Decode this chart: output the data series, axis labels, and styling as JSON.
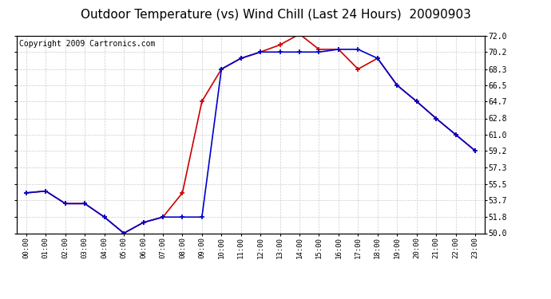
{
  "title": "Outdoor Temperature (vs) Wind Chill (Last 24 Hours)  20090903",
  "copyright": "Copyright 2009 Cartronics.com",
  "x_labels": [
    "00:00",
    "01:00",
    "02:00",
    "03:00",
    "04:00",
    "05:00",
    "06:00",
    "07:00",
    "08:00",
    "09:00",
    "10:00",
    "11:00",
    "12:00",
    "13:00",
    "14:00",
    "15:00",
    "16:00",
    "17:00",
    "18:00",
    "19:00",
    "20:00",
    "21:00",
    "22:00",
    "23:00"
  ],
  "temp_data": [
    54.5,
    54.7,
    53.3,
    53.3,
    51.8,
    50.0,
    51.2,
    51.8,
    54.5,
    64.7,
    68.3,
    69.5,
    70.2,
    71.0,
    72.2,
    70.5,
    70.5,
    68.3,
    69.5,
    66.5,
    64.7,
    62.8,
    61.0,
    59.2
  ],
  "windchill_data": [
    54.5,
    54.7,
    53.3,
    53.3,
    51.8,
    50.0,
    51.2,
    51.8,
    51.8,
    51.8,
    68.3,
    69.5,
    70.2,
    70.2,
    70.2,
    70.2,
    70.5,
    70.5,
    69.5,
    66.5,
    64.7,
    62.8,
    61.0,
    59.2
  ],
  "temp_color": "#cc0000",
  "windchill_color": "#0000cc",
  "ylim": [
    50.0,
    72.0
  ],
  "yticks": [
    50.0,
    51.8,
    53.7,
    55.5,
    57.3,
    59.2,
    61.0,
    62.8,
    64.7,
    66.5,
    68.3,
    70.2,
    72.0
  ],
  "background_color": "#ffffff",
  "plot_background": "#ffffff",
  "grid_color": "#cccccc",
  "title_fontsize": 11,
  "copyright_fontsize": 7
}
